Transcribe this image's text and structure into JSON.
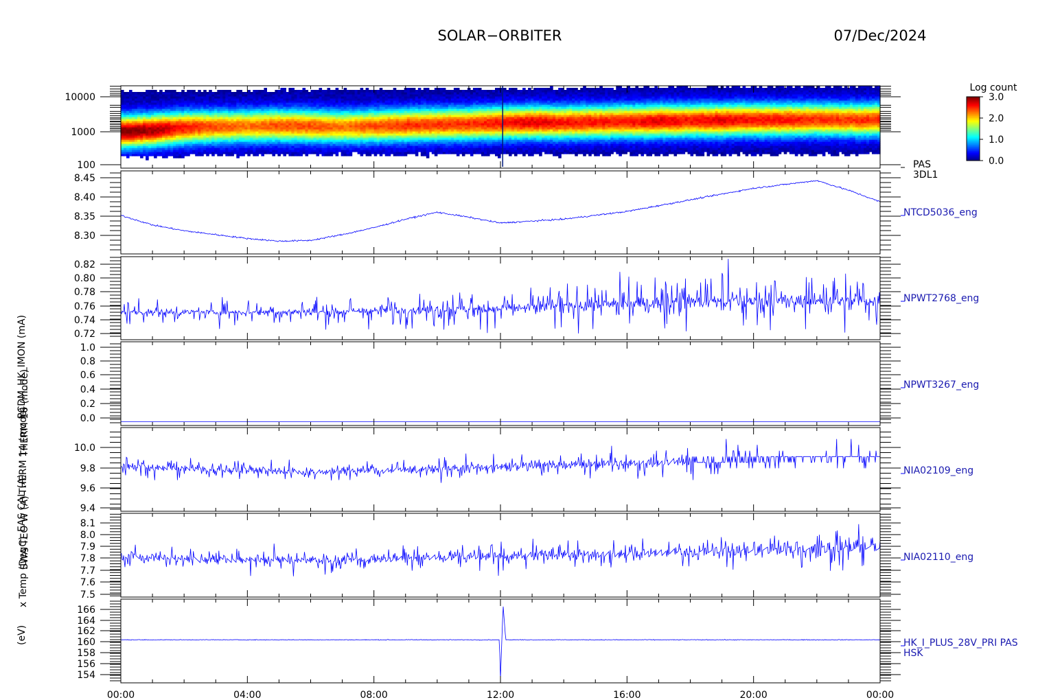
{
  "header": {
    "mission": "SOLAR−ORBITER",
    "date": "07/Dec/2024"
  },
  "x_axis": {
    "tick_labels": [
      "00:00",
      "04:00",
      "08:00",
      "12:00",
      "16:00",
      "20:00",
      "00:00"
    ]
  },
  "colorbar": {
    "title": "Log count",
    "ticks": [
      "3.0",
      "2.0",
      "1.0",
      "0.0"
    ],
    "range": [
      0.0,
      3.0
    ]
  },
  "panels": [
    {
      "id": "pas-3dl1",
      "kind": "spectrogram",
      "ylabel": "(eV)",
      "right_labels": [
        "PAS",
        "3DL1"
      ],
      "ticks": [
        "10000",
        "1000",
        "100"
      ]
    },
    {
      "id": "ntcd5036",
      "kind": "line",
      "ylabel": "x Temp (DegC)",
      "right_labels": [
        "NTCD5036_eng"
      ],
      "ticks": [
        "8.45",
        "8.40",
        "8.35",
        "8.30"
      ]
    },
    {
      "id": "npwt2768",
      "kind": "line",
      "ylabel": "SWA TEO W (A)",
      "right_labels": [
        "NPWT2768_eng"
      ],
      "ticks": [
        "0.82",
        "0.80",
        "0.78",
        "0.76",
        "0.74",
        "0.72"
      ]
    },
    {
      "id": "npwt3267",
      "kind": "line",
      "ylabel": "EAS CAL (A)",
      "right_labels": [
        "NPWT3267_eng"
      ],
      "ticks": [
        "1.0",
        "0.8",
        "0.6",
        "0.4",
        "0.2",
        "0.0"
      ]
    },
    {
      "id": "nia02109",
      "kind": "line",
      "ylabel": "THERM 14 (mode)",
      "right_labels": [
        "NIA02109_eng"
      ],
      "ticks": [
        "10.0",
        "9.8",
        "9.6",
        "9.4"
      ]
    },
    {
      "id": "nia02110",
      "kind": "line",
      "ylabel": "THERM 16 (mode)",
      "right_labels": [
        "NIA02110_eng"
      ],
      "ticks": [
        "8.1",
        "8.0",
        "7.9",
        "7.8",
        "7.7",
        "7.6",
        "7.5"
      ]
    },
    {
      "id": "hk-i-plus",
      "kind": "line",
      "ylabel": "PCDM_HK_IMON (mA)",
      "right_labels": [
        "HK_I_PLUS_28V_PRI PAS",
        "HSK"
      ],
      "ticks": [
        "166",
        "164",
        "162",
        "160",
        "158",
        "156",
        "154"
      ]
    }
  ],
  "chart_data": [
    {
      "type": "heatmap",
      "title": "PAS 3DL1",
      "xlabel": "",
      "ylabel": "(eV)",
      "y_scale": "log",
      "x_range": [
        "00:00",
        "24:00"
      ],
      "ylim": [
        100,
        16000
      ],
      "colorbar_label": "Log count",
      "clim": [
        0.0,
        3.0
      ],
      "x": [
        "00:00",
        "01:00",
        "02:00",
        "03:00",
        "04:00",
        "05:00",
        "06:00",
        "07:00",
        "08:00",
        "09:00",
        "10:00",
        "11:00",
        "12:00",
        "13:00",
        "14:00",
        "15:00",
        "16:00",
        "17:00",
        "18:00",
        "19:00",
        "20:00",
        "21:00",
        "22:00",
        "23:00",
        "24:00"
      ],
      "peak_energy_eV": [
        950,
        1050,
        1250,
        1300,
        1350,
        1400,
        1350,
        1300,
        1350,
        1450,
        1500,
        1550,
        1650,
        1700,
        1700,
        1750,
        1800,
        1850,
        1900,
        1950,
        2000,
        2000,
        2050,
        2000,
        2000
      ],
      "peak_log_count": [
        2.9,
        2.8,
        2.5,
        2.3,
        2.2,
        2.3,
        2.3,
        2.2,
        2.3,
        2.4,
        2.4,
        2.4,
        2.5,
        2.6,
        2.5,
        2.5,
        2.5,
        2.6,
        2.5,
        2.6,
        2.5,
        2.5,
        2.4,
        2.4,
        2.4
      ]
    },
    {
      "type": "line",
      "series": [
        {
          "name": "NTCD5036_eng",
          "color": "#0000ff"
        }
      ],
      "x": [
        "00:00",
        "01:00",
        "02:00",
        "03:00",
        "04:00",
        "05:00",
        "06:00",
        "07:00",
        "08:00",
        "09:00",
        "10:00",
        "11:00",
        "12:00",
        "13:00",
        "14:00",
        "15:00",
        "16:00",
        "17:00",
        "18:00",
        "19:00",
        "20:00",
        "21:00",
        "22:00",
        "23:00",
        "24:00"
      ],
      "values": [
        8.35,
        8.325,
        8.31,
        8.3,
        8.29,
        8.283,
        8.285,
        8.3,
        8.318,
        8.34,
        8.358,
        8.345,
        8.33,
        8.335,
        8.34,
        8.35,
        8.36,
        8.375,
        8.39,
        8.405,
        8.42,
        8.43,
        8.44,
        8.415,
        8.385
      ],
      "ylim": [
        8.25,
        8.465
      ],
      "noise": 0.002
    },
    {
      "type": "line",
      "series": [
        {
          "name": "NPWT2768_eng",
          "color": "#0000ff"
        }
      ],
      "x": [
        "00:00",
        "06:00",
        "12:00",
        "18:00",
        "24:00"
      ],
      "values": [
        0.75,
        0.75,
        0.755,
        0.765,
        0.765
      ],
      "spread": [
        0.02,
        0.02,
        0.035,
        0.045,
        0.045
      ],
      "ylim": [
        0.712,
        0.826
      ]
    },
    {
      "type": "line",
      "series": [
        {
          "name": "NPWT3267_eng",
          "color": "#0000ff"
        }
      ],
      "x": [
        "00:00",
        "24:00"
      ],
      "values": [
        0.0,
        0.0
      ],
      "ylim": [
        -0.05,
        1.05
      ]
    },
    {
      "type": "line",
      "series": [
        {
          "name": "NIA02109_eng",
          "color": "#0000ff"
        }
      ],
      "x": [
        "00:00",
        "06:00",
        "12:00",
        "18:00",
        "24:00"
      ],
      "values": [
        9.78,
        9.73,
        9.78,
        9.83,
        9.88
      ],
      "spread": [
        0.12,
        0.1,
        0.12,
        0.15,
        0.15
      ],
      "ylim": [
        9.38,
        10.13
      ]
    },
    {
      "type": "line",
      "series": [
        {
          "name": "NIA02110_eng",
          "color": "#0000ff"
        }
      ],
      "x": [
        "00:00",
        "06:00",
        "12:00",
        "18:00",
        "24:00"
      ],
      "values": [
        7.78,
        7.75,
        7.79,
        7.82,
        7.86
      ],
      "spread": [
        0.12,
        0.1,
        0.12,
        0.15,
        0.17
      ],
      "ylim": [
        7.46,
        8.13
      ]
    },
    {
      "type": "line",
      "series": [
        {
          "name": "HK_I_PLUS_28V_PRI PAS",
          "color": "#0000ff"
        }
      ],
      "x": [
        "00:00",
        "11:58",
        "12:00",
        "12:05",
        "12:10",
        "24:00"
      ],
      "values": [
        160.2,
        160.2,
        153.5,
        166.2,
        160.2,
        160.2
      ],
      "ylim": [
        152.8,
        167.2
      ]
    }
  ]
}
